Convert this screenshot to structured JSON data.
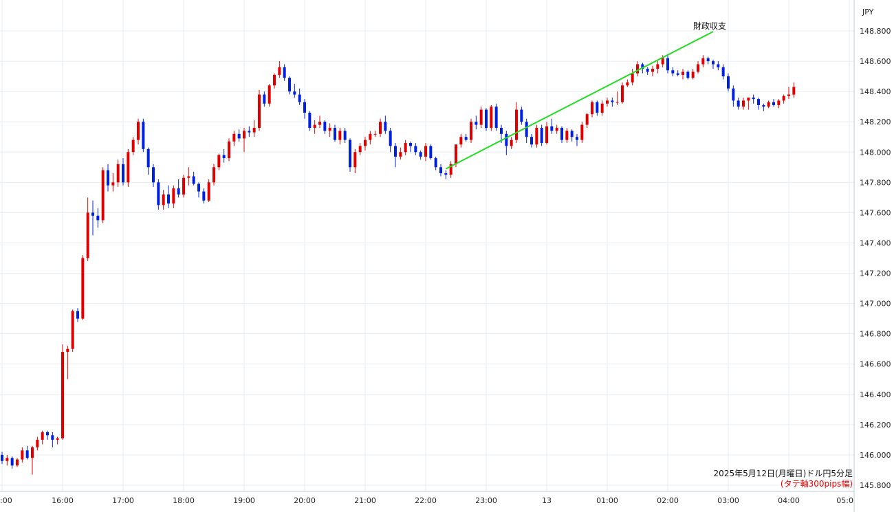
{
  "chart_data": {
    "type": "candlestick",
    "unit_label": "JPY",
    "ylim": [
      145.8,
      148.9
    ],
    "y_ticks": [
      "148.800",
      "148.600",
      "148.400",
      "148.200",
      "148.000",
      "147.800",
      "147.600",
      "147.400",
      "147.200",
      "147.000",
      "146.800",
      "146.600",
      "146.400",
      "146.200",
      "146.000",
      "145.800"
    ],
    "x_ticks": [
      ":00",
      "16:00",
      "17:00",
      "18:00",
      "19:00",
      "20:00",
      "21:00",
      "22:00",
      "23:00",
      "13",
      "01:00",
      "02:00",
      "03:00",
      "04:00",
      "05:0"
    ],
    "grid": true,
    "annotation": {
      "label": "財政収支",
      "time_index": 88
    },
    "note_line1": "2025年5月12日(月曜日)ドル円5分足",
    "note_line2": "(タテ軸300pips幅)",
    "colors": {
      "up": "#e00000",
      "down": "#0020e0",
      "grid": "#e6edf0",
      "arrow": "#22dd22",
      "note2": "#ee0000"
    },
    "candles": [
      [
        146.0,
        146.02,
        145.94,
        145.96
      ],
      [
        145.96,
        146.0,
        145.93,
        145.98
      ],
      [
        145.98,
        145.99,
        145.91,
        145.93
      ],
      [
        145.93,
        145.98,
        145.92,
        145.97
      ],
      [
        145.97,
        146.05,
        145.95,
        146.03
      ],
      [
        146.03,
        146.06,
        145.97,
        145.98
      ],
      [
        145.98,
        146.06,
        145.87,
        146.05
      ],
      [
        146.05,
        146.12,
        146.03,
        146.1
      ],
      [
        146.1,
        146.16,
        146.07,
        146.15
      ],
      [
        146.15,
        146.16,
        146.1,
        146.13
      ],
      [
        146.13,
        146.15,
        146.05,
        146.1
      ],
      [
        146.1,
        146.12,
        146.07,
        146.11
      ],
      [
        146.11,
        146.73,
        146.1,
        146.68
      ],
      [
        146.68,
        146.72,
        146.5,
        146.7
      ],
      [
        146.7,
        146.96,
        146.68,
        146.95
      ],
      [
        146.95,
        146.97,
        146.88,
        146.9
      ],
      [
        146.9,
        147.32,
        146.89,
        147.3
      ],
      [
        147.3,
        147.7,
        147.28,
        147.6
      ],
      [
        147.6,
        147.68,
        147.45,
        147.58
      ],
      [
        147.58,
        147.63,
        147.5,
        147.55
      ],
      [
        147.55,
        147.9,
        147.53,
        147.88
      ],
      [
        147.88,
        147.92,
        147.74,
        147.78
      ],
      [
        147.78,
        147.86,
        147.74,
        147.8
      ],
      [
        147.8,
        147.95,
        147.77,
        147.92
      ],
      [
        147.92,
        147.96,
        147.78,
        147.8
      ],
      [
        147.8,
        148.02,
        147.77,
        148.0
      ],
      [
        148.0,
        148.1,
        147.98,
        148.08
      ],
      [
        148.08,
        148.22,
        148.05,
        148.2
      ],
      [
        148.2,
        148.22,
        148.0,
        148.02
      ],
      [
        148.02,
        148.03,
        147.85,
        147.9
      ],
      [
        147.9,
        147.92,
        147.77,
        147.8
      ],
      [
        147.8,
        147.82,
        147.62,
        147.65
      ],
      [
        147.65,
        147.75,
        147.62,
        147.72
      ],
      [
        147.72,
        147.78,
        147.63,
        147.66
      ],
      [
        147.66,
        147.78,
        147.63,
        147.76
      ],
      [
        147.76,
        147.82,
        147.7,
        147.72
      ],
      [
        147.72,
        147.85,
        147.7,
        147.83
      ],
      [
        147.83,
        147.9,
        147.78,
        147.84
      ],
      [
        147.84,
        147.87,
        147.78,
        147.79
      ],
      [
        147.79,
        147.8,
        147.7,
        147.74
      ],
      [
        147.74,
        147.76,
        147.66,
        147.68
      ],
      [
        147.68,
        147.82,
        147.67,
        147.8
      ],
      [
        147.8,
        147.92,
        147.78,
        147.9
      ],
      [
        147.9,
        147.99,
        147.88,
        147.98
      ],
      [
        147.98,
        148.02,
        147.93,
        147.96
      ],
      [
        147.96,
        148.09,
        147.94,
        148.07
      ],
      [
        148.07,
        148.14,
        148.04,
        148.12
      ],
      [
        148.12,
        148.15,
        148.07,
        148.09
      ],
      [
        148.09,
        148.16,
        148.0,
        148.14
      ],
      [
        148.14,
        148.17,
        148.1,
        148.13
      ],
      [
        148.13,
        148.21,
        148.1,
        148.16
      ],
      [
        148.16,
        148.41,
        148.14,
        148.38
      ],
      [
        148.38,
        148.4,
        148.3,
        148.32
      ],
      [
        148.32,
        148.45,
        148.3,
        148.44
      ],
      [
        148.44,
        148.52,
        148.42,
        148.51
      ],
      [
        148.51,
        148.6,
        148.49,
        148.56
      ],
      [
        148.56,
        148.58,
        148.47,
        148.49
      ],
      [
        148.49,
        148.5,
        148.38,
        148.4
      ],
      [
        148.4,
        148.45,
        148.36,
        148.38
      ],
      [
        148.38,
        148.42,
        148.31,
        148.33
      ],
      [
        148.33,
        148.35,
        148.22,
        148.26
      ],
      [
        148.26,
        148.27,
        148.14,
        148.16
      ],
      [
        148.16,
        148.21,
        148.12,
        148.18
      ],
      [
        148.18,
        148.24,
        148.16,
        148.2
      ],
      [
        148.2,
        148.21,
        148.12,
        148.14
      ],
      [
        148.14,
        148.19,
        148.1,
        148.16
      ],
      [
        148.16,
        148.18,
        148.07,
        148.08
      ],
      [
        148.08,
        148.16,
        148.05,
        148.14
      ],
      [
        148.14,
        148.16,
        148.06,
        148.08
      ],
      [
        148.08,
        148.09,
        147.87,
        147.9
      ],
      [
        147.9,
        148.02,
        147.86,
        148.0
      ],
      [
        148.0,
        148.06,
        147.98,
        148.04
      ],
      [
        148.04,
        148.1,
        148.01,
        148.08
      ],
      [
        148.08,
        148.14,
        148.05,
        148.12
      ],
      [
        148.12,
        148.14,
        148.1,
        148.12
      ],
      [
        148.12,
        148.22,
        148.1,
        148.2
      ],
      [
        148.2,
        148.24,
        148.12,
        148.14
      ],
      [
        148.14,
        148.16,
        148.0,
        148.04
      ],
      [
        148.04,
        148.06,
        147.9,
        147.97
      ],
      [
        147.97,
        148.03,
        147.95,
        148.0
      ],
      [
        148.0,
        148.08,
        147.98,
        148.06
      ],
      [
        148.06,
        148.07,
        148.0,
        148.04
      ],
      [
        148.04,
        148.06,
        147.98,
        148.0
      ],
      [
        148.0,
        148.01,
        147.95,
        147.97
      ],
      [
        147.97,
        148.06,
        147.94,
        148.04
      ],
      [
        148.04,
        148.05,
        147.95,
        147.96
      ],
      [
        147.96,
        147.97,
        147.88,
        147.9
      ],
      [
        147.9,
        147.92,
        147.84,
        147.86
      ],
      [
        147.86,
        147.88,
        147.82,
        147.85
      ],
      [
        147.85,
        147.94,
        147.83,
        147.92
      ],
      [
        147.92,
        148.05,
        147.9,
        148.05
      ],
      [
        148.05,
        148.12,
        148.03,
        148.1
      ],
      [
        148.1,
        148.12,
        148.07,
        148.08
      ],
      [
        148.08,
        148.22,
        148.06,
        148.2
      ],
      [
        148.2,
        148.24,
        148.15,
        148.18
      ],
      [
        148.18,
        148.3,
        148.16,
        148.28
      ],
      [
        148.28,
        148.29,
        148.14,
        148.16
      ],
      [
        148.16,
        148.31,
        148.14,
        148.3
      ],
      [
        148.3,
        148.32,
        148.14,
        148.16
      ],
      [
        148.16,
        148.18,
        148.06,
        148.12
      ],
      [
        148.12,
        148.14,
        147.98,
        148.04
      ],
      [
        148.04,
        148.1,
        148.02,
        148.08
      ],
      [
        148.08,
        148.33,
        148.06,
        148.28
      ],
      [
        148.28,
        148.3,
        148.18,
        148.2
      ],
      [
        148.2,
        148.22,
        148.06,
        148.1
      ],
      [
        148.1,
        148.12,
        148.03,
        148.05
      ],
      [
        148.05,
        148.18,
        148.03,
        148.16
      ],
      [
        148.16,
        148.18,
        148.04,
        148.06
      ],
      [
        148.06,
        148.2,
        148.05,
        148.17
      ],
      [
        148.17,
        148.22,
        148.12,
        148.14
      ],
      [
        148.14,
        148.18,
        148.12,
        148.16
      ],
      [
        148.16,
        148.17,
        148.06,
        148.08
      ],
      [
        148.08,
        148.16,
        148.06,
        148.14
      ],
      [
        148.14,
        148.15,
        148.07,
        148.1
      ],
      [
        148.1,
        148.12,
        148.04,
        148.08
      ],
      [
        148.08,
        148.2,
        148.06,
        148.18
      ],
      [
        148.18,
        148.26,
        148.16,
        148.25
      ],
      [
        148.25,
        148.34,
        148.23,
        148.33
      ],
      [
        148.33,
        148.34,
        148.24,
        148.26
      ],
      [
        148.26,
        148.34,
        148.24,
        148.32
      ],
      [
        148.32,
        148.36,
        148.3,
        148.34
      ],
      [
        148.34,
        148.36,
        148.3,
        148.33
      ],
      [
        148.33,
        148.4,
        148.31,
        148.33
      ],
      [
        148.33,
        148.46,
        148.32,
        148.44
      ],
      [
        148.44,
        148.48,
        148.43,
        148.46
      ],
      [
        148.46,
        148.55,
        148.44,
        148.52
      ],
      [
        148.52,
        148.6,
        148.5,
        148.58
      ],
      [
        148.58,
        148.59,
        148.52,
        148.55
      ],
      [
        148.55,
        148.56,
        148.51,
        148.53
      ],
      [
        148.53,
        148.57,
        148.5,
        148.55
      ],
      [
        148.55,
        148.6,
        148.52,
        148.58
      ],
      [
        148.58,
        148.64,
        148.56,
        148.62
      ],
      [
        148.62,
        148.64,
        148.52,
        148.54
      ],
      [
        148.54,
        148.56,
        148.5,
        148.52
      ],
      [
        148.52,
        148.54,
        148.5,
        148.51
      ],
      [
        148.51,
        148.55,
        148.48,
        148.53
      ],
      [
        148.53,
        148.54,
        148.48,
        148.49
      ],
      [
        148.49,
        148.55,
        148.48,
        148.53
      ],
      [
        148.53,
        148.6,
        148.52,
        148.58
      ],
      [
        148.58,
        148.64,
        148.56,
        148.62
      ],
      [
        148.62,
        148.63,
        148.58,
        148.6
      ],
      [
        148.6,
        148.61,
        148.55,
        148.58
      ],
      [
        148.58,
        148.6,
        148.54,
        148.56
      ],
      [
        148.56,
        148.58,
        148.48,
        148.5
      ],
      [
        148.5,
        148.52,
        148.4,
        148.42
      ],
      [
        148.42,
        148.44,
        148.3,
        148.34
      ],
      [
        148.34,
        148.36,
        148.28,
        148.3
      ],
      [
        148.3,
        148.36,
        148.28,
        148.34
      ],
      [
        148.34,
        148.36,
        148.28,
        148.36
      ],
      [
        148.36,
        148.38,
        148.32,
        148.35
      ],
      [
        148.35,
        148.36,
        148.28,
        148.31
      ],
      [
        148.31,
        148.32,
        148.27,
        148.3
      ],
      [
        148.3,
        148.34,
        148.29,
        148.33
      ],
      [
        148.33,
        148.35,
        148.3,
        148.31
      ],
      [
        148.31,
        148.35,
        148.29,
        148.34
      ],
      [
        148.34,
        148.38,
        148.32,
        148.37
      ],
      [
        148.37,
        148.43,
        148.35,
        148.38
      ],
      [
        148.38,
        148.46,
        148.36,
        148.43
      ]
    ]
  }
}
